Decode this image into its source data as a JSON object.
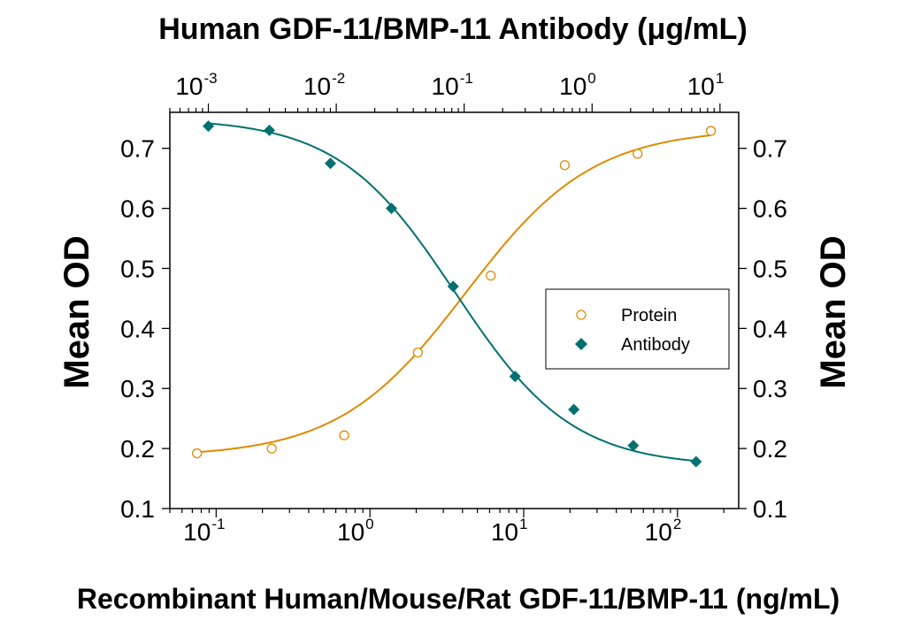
{
  "chart_data": {
    "type": "scatter",
    "title": "Human GDF-11/BMP-11 Antibody (μg/mL)",
    "xlabel": "Recombinant Human/Mouse/Rat GDF-11/BMP-11 (ng/mL)",
    "ylabel": "Mean OD",
    "ylabel_right": "Mean OD",
    "x_scale": "log",
    "xlim": [
      0.05,
      250
    ],
    "x_top_scale": "log",
    "x_top_lim": [
      0.0005,
      14
    ],
    "ylim": [
      0.1,
      0.76
    ],
    "y_ticks": [
      "0.1",
      "0.2",
      "0.3",
      "0.4",
      "0.5",
      "0.6",
      "0.7"
    ],
    "x_bottom_ticks": [
      {
        "value": 0.1,
        "base": "10",
        "exp": "-1"
      },
      {
        "value": 1,
        "base": "10",
        "exp": "0"
      },
      {
        "value": 10,
        "base": "10",
        "exp": "1"
      },
      {
        "value": 100,
        "base": "10",
        "exp": "2"
      }
    ],
    "x_top_ticks": [
      {
        "value": 0.001,
        "base": "10",
        "exp": "-3"
      },
      {
        "value": 0.01,
        "base": "10",
        "exp": "-2"
      },
      {
        "value": 0.1,
        "base": "10",
        "exp": "-1"
      },
      {
        "value": 1,
        "base": "10",
        "exp": "0"
      },
      {
        "value": 10,
        "base": "10",
        "exp": "1"
      }
    ],
    "grid": false,
    "legend_position": "center-right",
    "series": [
      {
        "name": "Protein",
        "axis": "bottom",
        "marker": "open-circle",
        "color": "#E08A00",
        "x": [
          0.075,
          0.23,
          0.68,
          2.05,
          6.1,
          18.5,
          55,
          165
        ],
        "y": [
          0.192,
          0.2,
          0.222,
          0.36,
          0.488,
          0.672,
          0.691,
          0.729
        ],
        "fit": {
          "bottom": 0.186,
          "top": 0.733,
          "ec50": 4.2,
          "hill": 1.05
        }
      },
      {
        "name": "Antibody",
        "axis": "top",
        "marker": "filled-diamond",
        "color": "#007070",
        "x": [
          0.001,
          0.003,
          0.009,
          0.027,
          0.082,
          0.25,
          0.72,
          2.1,
          6.5
        ],
        "y": [
          0.737,
          0.73,
          0.675,
          0.6,
          0.47,
          0.32,
          0.265,
          0.205,
          0.178
        ],
        "fit": {
          "bottom": 0.17,
          "top": 0.75,
          "ec50": 0.085,
          "hill": 0.95
        }
      }
    ]
  }
}
